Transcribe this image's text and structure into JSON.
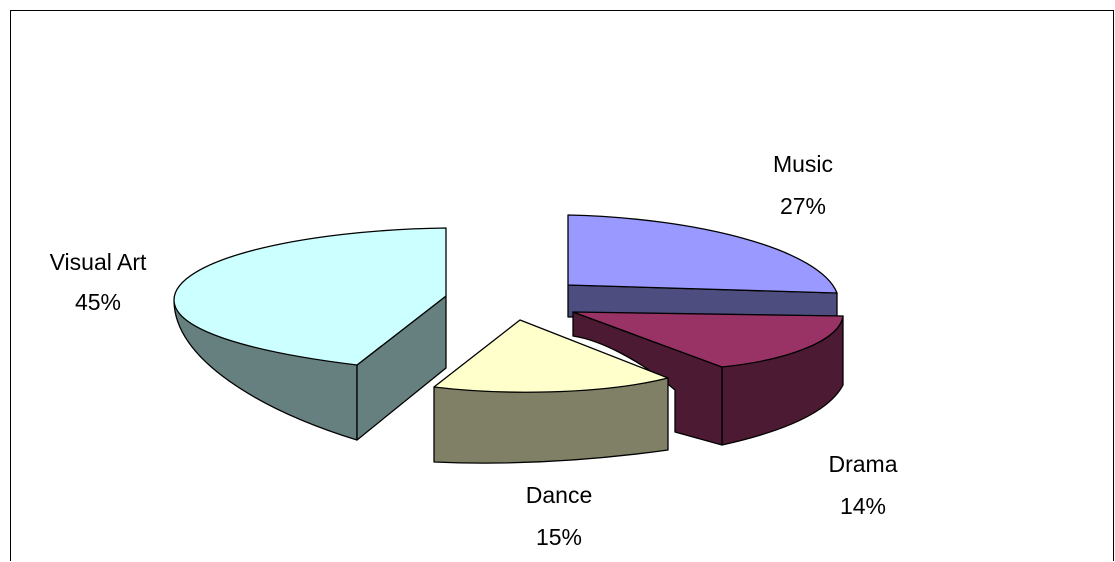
{
  "chart_data": {
    "type": "pie",
    "style": "3d-exploded",
    "slices": [
      {
        "category": "Visual Art",
        "percent_label": "45%",
        "value": 45,
        "top_color": "#ccffff",
        "side_color": "#668080"
      },
      {
        "category": "Music",
        "percent_label": "27%",
        "value": 27,
        "top_color": "#9999ff",
        "side_color": "#4d4d80"
      },
      {
        "category": "Drama",
        "percent_label": "14%",
        "value": 14,
        "top_color": "#993366",
        "side_color": "#4d1a33"
      },
      {
        "category": "Dance",
        "percent_label": "15%",
        "value": 15,
        "top_color": "#ffffcc",
        "side_color": "#808066"
      }
    ],
    "legend": "none",
    "data_labels": "category-and-percent"
  }
}
